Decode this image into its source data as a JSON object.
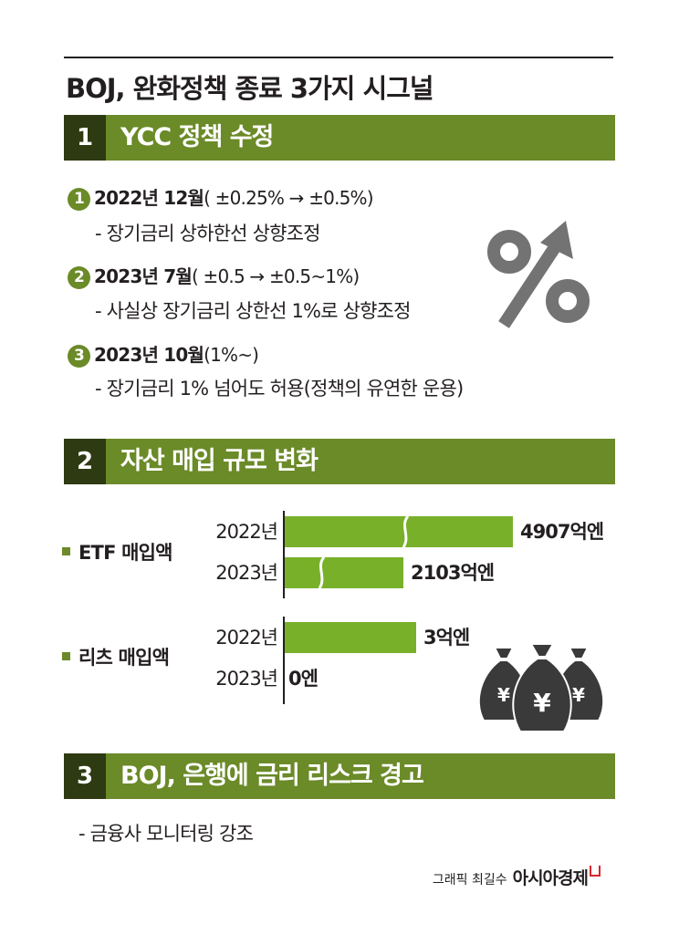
{
  "title": "BOJ, 완화정책 종료 3가지 시그널",
  "sections": [
    {
      "num": "1",
      "title": "YCC 정책 수정"
    },
    {
      "num": "2",
      "title": "자산 매입 규모 변화"
    },
    {
      "num": "3",
      "title": "BOJ, 은행에 금리 리스크 경고"
    }
  ],
  "ycc_items": [
    {
      "num": "1",
      "date": "2022년 12월",
      "detail": "( ±0.25% → ±0.5%)",
      "note": "- 장기금리 상하한선 상향조정"
    },
    {
      "num": "2",
      "date": "2023년 7월",
      "detail": "( ±0.5 → ±0.5~1%)",
      "note": "- 사실상 장기금리 상한선 1%로 상향조정"
    },
    {
      "num": "3",
      "date": "2023년 10월",
      "detail": "(1%~)",
      "note": "- 장기금리 1% 넘어도 허용(정책의 유연한 운용)"
    }
  ],
  "percent_icon": {
    "icon": "percent-arrow-up-icon",
    "glyph": "%",
    "color": "#737373"
  },
  "chart_data": {
    "type": "bar",
    "orientation": "horizontal",
    "unit": "억엔",
    "groups": [
      {
        "name": "ETF 매입액",
        "categories": [
          "2022년",
          "2023년"
        ],
        "values": [
          4907,
          2103
        ],
        "labels": [
          "4907억엔",
          "2103억엔"
        ],
        "axis_break": true
      },
      {
        "name": "리츠 매입액",
        "categories": [
          "2022년",
          "2023년"
        ],
        "values": [
          3,
          0
        ],
        "labels": [
          "3억엔",
          "0엔"
        ],
        "axis_break": false
      }
    ],
    "bar_color": "#78b02a"
  },
  "money_icon": {
    "icon": "yen-money-bags-icon",
    "glyph": "¥",
    "color": "#3a3a3a"
  },
  "section3_note": "- 금융사 모니터링 강조",
  "credit": {
    "text": "그래픽 최길수",
    "brand": "아시아경제"
  },
  "colors": {
    "accent": "#6b8a28",
    "accent_dark": "#2e3a12",
    "bar": "#78b02a",
    "brand_red": "#d6262d"
  }
}
